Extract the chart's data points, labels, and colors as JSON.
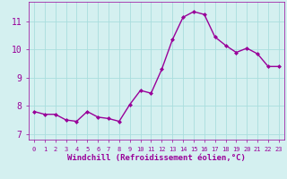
{
  "x": [
    0,
    1,
    2,
    3,
    4,
    5,
    6,
    7,
    8,
    9,
    10,
    11,
    12,
    13,
    14,
    15,
    16,
    17,
    18,
    19,
    20,
    21,
    22,
    23
  ],
  "y": [
    7.8,
    7.7,
    7.7,
    7.5,
    7.45,
    7.8,
    7.6,
    7.55,
    7.45,
    8.05,
    8.55,
    8.45,
    9.3,
    10.35,
    11.15,
    11.35,
    11.25,
    10.45,
    10.15,
    9.9,
    10.05,
    9.85,
    9.4,
    9.4
  ],
  "line_color": "#990099",
  "marker": "D",
  "marker_size": 2.0,
  "line_width": 1.0,
  "bg_color": "#d4f0f0",
  "grid_color": "#aadddd",
  "tick_color": "#990099",
  "xlabel": "Windchill (Refroidissement éolien,°C)",
  "xlabel_fontsize": 6.5,
  "ylabel_ticks": [
    7,
    8,
    9,
    10,
    11
  ],
  "xtick_labels": [
    "0",
    "1",
    "2",
    "3",
    "4",
    "5",
    "6",
    "7",
    "8",
    "9",
    "10",
    "11",
    "12",
    "13",
    "14",
    "15",
    "16",
    "17",
    "18",
    "19",
    "20",
    "21",
    "22",
    "23"
  ],
  "ylim": [
    6.8,
    11.7
  ],
  "xlim": [
    -0.5,
    23.5
  ],
  "ytick_fontsize": 7,
  "xtick_fontsize": 5.0
}
